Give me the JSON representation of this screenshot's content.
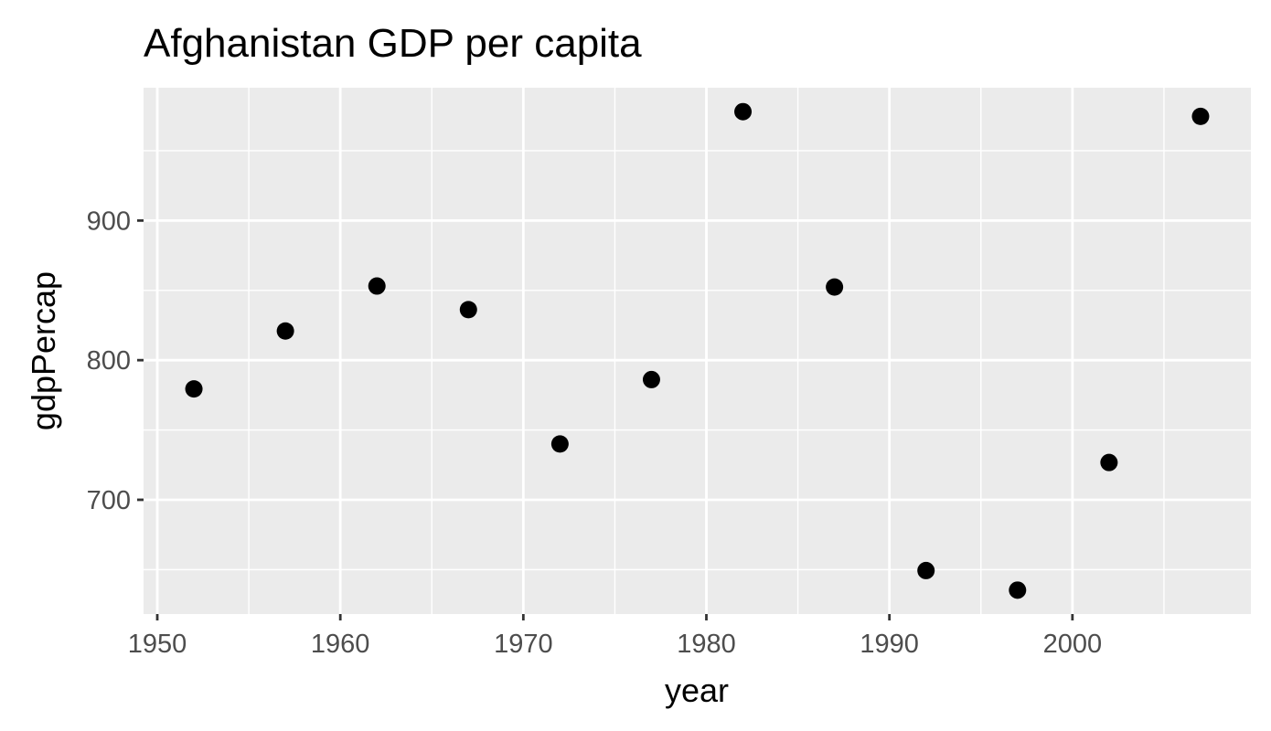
{
  "chart_data": {
    "type": "scatter",
    "title": "Afghanistan GDP per capita",
    "xlabel": "year",
    "ylabel": "gdpPercap",
    "x": [
      1952,
      1957,
      1962,
      1967,
      1972,
      1977,
      1982,
      1987,
      1992,
      1997,
      2002,
      2007
    ],
    "y": [
      779.4,
      820.9,
      853.1,
      836.2,
      740.0,
      786.1,
      978.0,
      852.4,
      649.3,
      635.3,
      726.7,
      974.6
    ],
    "xlim": [
      1949.25,
      2009.75
    ],
    "ylim": [
      618.17,
      995.15
    ],
    "x_ticks": [
      1950,
      1960,
      1970,
      1980,
      1990,
      2000
    ],
    "x_tick_labels": [
      "1950",
      "1960",
      "1970",
      "1980",
      "1990",
      "2000"
    ],
    "y_ticks": [
      700,
      800,
      900
    ],
    "y_tick_labels": [
      "700",
      "800",
      "900"
    ],
    "x_minor_ticks": [
      1955,
      1965,
      1975,
      1985,
      1995,
      2005
    ],
    "y_minor_ticks": [
      650,
      750,
      850,
      950
    ],
    "grid": true,
    "legend": "none",
    "colors": {
      "panel_background": "#ebebeb",
      "grid_line": "#ffffff",
      "point": "#000000",
      "tick_mark": "#333333",
      "tick_label": "#4d4d4d",
      "text": "#000000"
    }
  }
}
